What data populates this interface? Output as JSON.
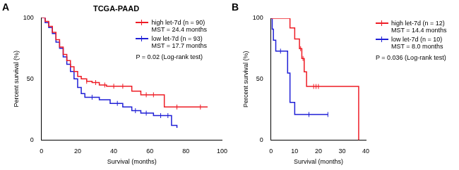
{
  "chart_data": [
    {
      "panel": "A",
      "type": "line",
      "title": "TCGA-PAAD",
      "x_label": "Survival (months)",
      "y_label": "Percent survival (%)",
      "xlim": [
        0,
        100
      ],
      "xticks": [
        0,
        20,
        40,
        60,
        80,
        100
      ],
      "ylim": [
        0,
        100
      ],
      "yticks": [
        0,
        50,
        100
      ],
      "grid": false,
      "legend": "upper right",
      "annotations": [
        "P = 0.02 (Log-rank test)"
      ],
      "series": [
        {
          "name": "high let-7d (n = 90)",
          "note": "MST = 24.4 months",
          "color": "#ee1c25",
          "line_style": "step",
          "marker": "|",
          "x": [
            0,
            2,
            4,
            6,
            8,
            10,
            12,
            14,
            16,
            18,
            20,
            22,
            25,
            28,
            32,
            36,
            50,
            55,
            68,
            92
          ],
          "values": [
            100,
            97,
            93,
            88,
            82,
            76,
            70,
            65,
            60,
            56,
            52,
            50,
            48,
            47,
            45,
            44,
            40,
            37,
            27,
            27
          ],
          "censored_x": [
            25,
            30,
            35,
            40,
            45,
            58,
            62,
            75,
            88
          ],
          "censored_values": [
            48,
            47,
            45,
            44,
            44,
            37,
            37,
            27,
            27
          ]
        },
        {
          "name": "low let-7d (n = 93)",
          "note": "MST = 17.7 months",
          "color": "#1f1fd6",
          "line_style": "step",
          "marker": "|",
          "x": [
            0,
            2,
            4,
            6,
            8,
            10,
            12,
            14,
            16,
            18,
            20,
            22,
            24,
            32,
            38,
            45,
            50,
            55,
            62,
            72,
            75
          ],
          "values": [
            100,
            96,
            92,
            87,
            80,
            75,
            68,
            62,
            56,
            50,
            43,
            38,
            35,
            33,
            30,
            27,
            24,
            22,
            20,
            12,
            10
          ],
          "censored_x": [
            28,
            42,
            52,
            58,
            66,
            70
          ],
          "censored_values": [
            35,
            30,
            24,
            22,
            20,
            20
          ]
        }
      ]
    },
    {
      "panel": "B",
      "type": "line",
      "x_label": "Survival (months)",
      "y_label": "Percent survival (%)",
      "xlim": [
        0,
        40
      ],
      "xticks": [
        0,
        10,
        20,
        30,
        40
      ],
      "ylim": [
        0,
        100
      ],
      "yticks": [
        0,
        50,
        100
      ],
      "grid": false,
      "legend": "right",
      "annotations": [
        "P = 0.036 (Log-rank test)"
      ],
      "series": [
        {
          "name": "high let-7d (n = 12)",
          "note": "MST = 14.4 months",
          "color": "#ee1c25",
          "line_style": "step",
          "marker": "|",
          "x": [
            0,
            8,
            10,
            12,
            13,
            14,
            15,
            37
          ],
          "values": [
            100,
            92,
            83,
            75,
            67,
            56,
            44,
            0
          ],
          "censored_x": [
            12.5,
            13.5,
            18,
            19,
            20
          ],
          "censored_values": [
            75,
            67,
            44,
            44,
            44
          ]
        },
        {
          "name": "low let-7d (n = 10)",
          "note": "MST = 8.0 months",
          "color": "#1f1fd6",
          "line_style": "step",
          "marker": "|",
          "x": [
            0,
            0.5,
            1,
            2,
            7,
            8,
            10,
            24
          ],
          "values": [
            100,
            91,
            82,
            73,
            55,
            31,
            21,
            21
          ],
          "censored_x": [
            4,
            16,
            24
          ],
          "censored_values": [
            73,
            21,
            21
          ]
        }
      ]
    }
  ]
}
